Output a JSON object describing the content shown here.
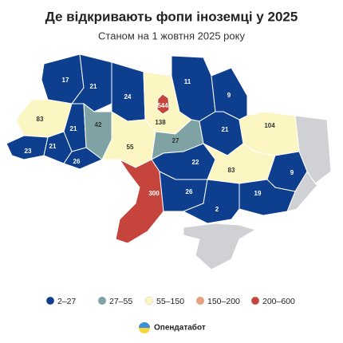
{
  "header": {
    "title": "Де відкривають фопи іноземці у 2025",
    "subtitle": "Станом на 1 жовтня 2025 року"
  },
  "map": {
    "regions": [
      {
        "value": 17,
        "color": "#0e3f8e"
      },
      {
        "value": 21,
        "color": "#0e3f8e"
      },
      {
        "value": 24,
        "color": "#0e3f8e"
      },
      {
        "value": 138,
        "color": "#fbf6c2"
      },
      {
        "value": 11,
        "color": "#0e3f8e"
      },
      {
        "value": 9,
        "color": "#0e3f8e"
      },
      {
        "value": 83,
        "color": "#fbf6c2"
      },
      {
        "value": 21,
        "color": "#0e3f8e"
      },
      {
        "value": 42,
        "color": "#7fa3a5"
      },
      {
        "value": 23,
        "color": "#0e3f8e"
      },
      {
        "value": 21,
        "color": "#0e3f8e"
      },
      {
        "value": 26,
        "color": "#0e3f8e"
      },
      {
        "value": 55,
        "color": "#fbf6c2"
      },
      {
        "value": 27,
        "color": "#7fa3a5"
      },
      {
        "value": 21,
        "color": "#0e3f8e"
      },
      {
        "value": 104,
        "color": "#fbf6c2"
      },
      {
        "value": 22,
        "color": "#0e3f8e"
      },
      {
        "value": 83,
        "color": "#fbf6c2"
      },
      {
        "value": 9,
        "color": "#0e3f8e"
      },
      {
        "value": 300,
        "color": "#c5443b"
      },
      {
        "value": 26,
        "color": "#0e3f8e"
      },
      {
        "value": 19,
        "color": "#0e3f8e"
      },
      {
        "value": 2,
        "color": "#0e3f8e"
      },
      {
        "value": 544,
        "color": "#c5443b"
      }
    ]
  },
  "legend": [
    {
      "label": "2–27",
      "color": "#0e3f8e"
    },
    {
      "label": "27–55",
      "color": "#7fa3a5"
    },
    {
      "label": "55–150",
      "color": "#fbf6c2"
    },
    {
      "label": "150–200",
      "color": "#e7a17c"
    },
    {
      "label": "200–600",
      "color": "#c5443b"
    }
  ],
  "footer": {
    "brand": "Опендатабот"
  }
}
